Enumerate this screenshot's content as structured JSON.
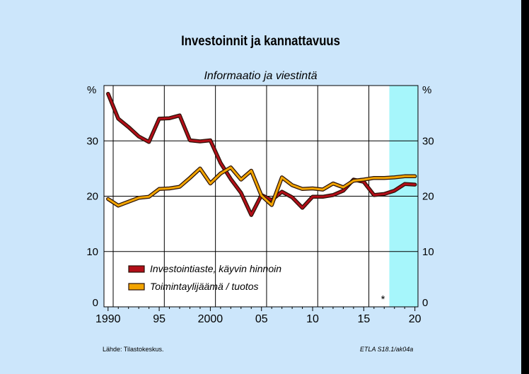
{
  "chart_data": {
    "type": "line",
    "title": "Investoinnit ja kannattavuus",
    "subtitle": "Informaatio ja viestintä",
    "y_unit_left": "%",
    "y_unit_right": "%",
    "ylim": [
      0,
      40
    ],
    "yticks": [
      "0",
      "10",
      "20",
      "30"
    ],
    "xlim": [
      1989.6,
      2020.3
    ],
    "xticks": [
      {
        "x": 1990,
        "label": "1990"
      },
      {
        "x": 1995,
        "label": "95"
      },
      {
        "x": 2000,
        "label": "2000"
      },
      {
        "x": 2005,
        "label": "05"
      },
      {
        "x": 2010,
        "label": "10"
      },
      {
        "x": 2015,
        "label": "15"
      },
      {
        "x": 2020,
        "label": "20"
      }
    ],
    "grid": true,
    "forecast": {
      "from": 2017.5,
      "color": "#a6f6fb"
    },
    "forecast_marker": "*",
    "legend_position": "lower-left",
    "series": [
      {
        "name": "Investointiaste, käyvin hinnoin",
        "color": "#b20e18",
        "x": [
          1990,
          1991,
          1992,
          1993,
          1994,
          1995,
          1996,
          1997,
          1998,
          1999,
          2000,
          2001,
          2002,
          2003,
          2004,
          2005,
          2006,
          2007,
          2008,
          2009,
          2010,
          2011,
          2012,
          2013,
          2014,
          2015,
          2016,
          2017,
          2018,
          2019,
          2020
        ],
        "values": [
          38.5,
          34.0,
          32.5,
          30.8,
          29.8,
          34.0,
          34.1,
          34.6,
          30.1,
          29.9,
          30.1,
          26.0,
          23.1,
          20.6,
          16.6,
          20.2,
          19.3,
          20.8,
          19.8,
          17.9,
          19.9,
          19.9,
          20.2,
          21.0,
          23.0,
          22.6,
          20.2,
          20.4,
          21.0,
          22.2,
          22.1
        ]
      },
      {
        "name": "Toimintaylijäämä / tuotos",
        "color": "#f2a400",
        "x": [
          1990,
          1991,
          1992,
          1993,
          1994,
          1995,
          1996,
          1997,
          1998,
          1999,
          2000,
          2001,
          2002,
          2003,
          2004,
          2005,
          2006,
          2007,
          2008,
          2009,
          2010,
          2011,
          2012,
          2013,
          2014,
          2015,
          2016,
          2017,
          2018,
          2019,
          2020
        ],
        "values": [
          19.5,
          18.3,
          19.0,
          19.7,
          19.9,
          21.3,
          21.4,
          21.7,
          23.3,
          25.0,
          22.3,
          24.1,
          25.2,
          23.0,
          24.6,
          20.1,
          18.4,
          23.4,
          22.0,
          21.3,
          21.4,
          21.2,
          22.3,
          21.6,
          22.8,
          23.0,
          23.3,
          23.3,
          23.4,
          23.6,
          23.6
        ]
      }
    ]
  },
  "footer": {
    "source": "Lähde:   Tilastokeskus.",
    "code": "ETLA S18.1/ak04a"
  }
}
